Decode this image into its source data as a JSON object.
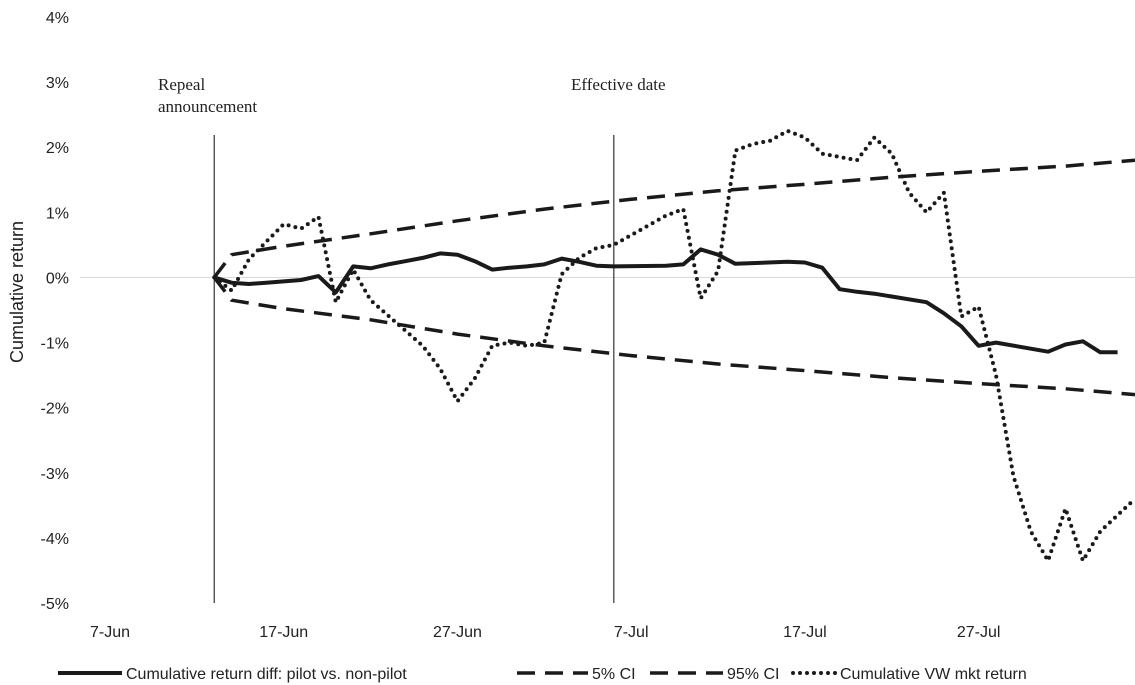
{
  "chart_data": {
    "type": "line",
    "title": "",
    "xlabel": "",
    "ylabel": "Cumulative return",
    "x_ticks": [
      "7-Jun",
      "17-Jun",
      "27-Jun",
      "7-Jul",
      "17-Jul",
      "27-Jul"
    ],
    "y_ticks": [
      "4%",
      "3%",
      "2%",
      "1%",
      "0%",
      "-1%",
      "-2%",
      "-3%",
      "-4%",
      "-5%"
    ],
    "x_range": [
      "2016-06-07",
      "2016-08-05"
    ],
    "ylim": [
      -5,
      4
    ],
    "y_unit": "%",
    "gridlines": "zero line only",
    "legend_position": "bottom",
    "annotations": [
      {
        "label": "Repeal announcement",
        "lines": [
          "Repeal",
          "announcement"
        ],
        "date": "2016-06-13"
      },
      {
        "label": "Effective date",
        "lines": [
          "Effective date"
        ],
        "date": "2016-07-06"
      }
    ],
    "series": [
      {
        "name": "Cumulative return diff: pilot vs. non-pilot",
        "style": "solid",
        "color": "#1a1a1a",
        "points": [
          [
            "2016-06-13",
            0.0
          ],
          [
            "2016-06-14",
            -0.08
          ],
          [
            "2016-06-15",
            -0.1
          ],
          [
            "2016-06-16",
            -0.08
          ],
          [
            "2016-06-17",
            -0.06
          ],
          [
            "2016-06-18",
            -0.04
          ],
          [
            "2016-06-19",
            0.02
          ],
          [
            "2016-06-20",
            -0.23
          ],
          [
            "2016-06-21",
            0.17
          ],
          [
            "2016-06-22",
            0.14
          ],
          [
            "2016-06-23",
            0.2
          ],
          [
            "2016-06-24",
            0.25
          ],
          [
            "2016-06-25",
            0.3
          ],
          [
            "2016-06-26",
            0.37
          ],
          [
            "2016-06-27",
            0.35
          ],
          [
            "2016-06-28",
            0.25
          ],
          [
            "2016-06-29",
            0.12
          ],
          [
            "2016-06-30",
            0.15
          ],
          [
            "2016-07-01",
            0.17
          ],
          [
            "2016-07-02",
            0.2
          ],
          [
            "2016-07-03",
            0.29
          ],
          [
            "2016-07-04",
            0.24
          ],
          [
            "2016-07-05",
            0.18
          ],
          [
            "2016-07-06",
            0.17
          ],
          [
            "2016-07-09",
            0.18
          ],
          [
            "2016-07-10",
            0.2
          ],
          [
            "2016-07-11",
            0.43
          ],
          [
            "2016-07-12",
            0.35
          ],
          [
            "2016-07-13",
            0.21
          ],
          [
            "2016-07-16",
            0.24
          ],
          [
            "2016-07-17",
            0.23
          ],
          [
            "2016-07-18",
            0.15
          ],
          [
            "2016-07-19",
            -0.18
          ],
          [
            "2016-07-20",
            -0.22
          ],
          [
            "2016-07-21",
            -0.25
          ],
          [
            "2016-07-24",
            -0.38
          ],
          [
            "2016-07-25",
            -0.55
          ],
          [
            "2016-07-26",
            -0.75
          ],
          [
            "2016-07-27",
            -1.05
          ],
          [
            "2016-07-28",
            -1.0
          ],
          [
            "2016-07-31",
            -1.14
          ],
          [
            "2016-08-01",
            -1.03
          ],
          [
            "2016-08-02",
            -0.98
          ],
          [
            "2016-08-03",
            -1.15
          ],
          [
            "2016-08-04",
            -1.15
          ]
        ]
      },
      {
        "name": "5% CI",
        "style": "dashed",
        "color": "#1a1a1a",
        "points": [
          [
            "2016-06-13",
            0.0
          ],
          [
            "2016-06-14",
            -0.35
          ],
          [
            "2016-06-17",
            -0.48
          ],
          [
            "2016-06-22",
            -0.65
          ],
          [
            "2016-06-27",
            -0.87
          ],
          [
            "2016-07-02",
            -1.05
          ],
          [
            "2016-07-07",
            -1.2
          ],
          [
            "2016-07-12",
            -1.33
          ],
          [
            "2016-07-17",
            -1.43
          ],
          [
            "2016-07-22",
            -1.54
          ],
          [
            "2016-07-27",
            -1.63
          ],
          [
            "2016-08-01",
            -1.71
          ],
          [
            "2016-08-05",
            -1.8
          ]
        ]
      },
      {
        "name": "95% CI",
        "style": "dashed",
        "color": "#1a1a1a",
        "points": [
          [
            "2016-06-13",
            0.0
          ],
          [
            "2016-06-14",
            0.35
          ],
          [
            "2016-06-17",
            0.48
          ],
          [
            "2016-06-22",
            0.67
          ],
          [
            "2016-06-27",
            0.87
          ],
          [
            "2016-07-02",
            1.05
          ],
          [
            "2016-07-07",
            1.2
          ],
          [
            "2016-07-12",
            1.33
          ],
          [
            "2016-07-17",
            1.43
          ],
          [
            "2016-07-22",
            1.54
          ],
          [
            "2016-07-27",
            1.63
          ],
          [
            "2016-08-01",
            1.71
          ],
          [
            "2016-08-05",
            1.8
          ]
        ]
      },
      {
        "name": "Cumulative VW mkt return",
        "style": "dotted",
        "color": "#1a1a1a",
        "points": [
          [
            "2016-06-13",
            0.0
          ],
          [
            "2016-06-14",
            -0.2
          ],
          [
            "2016-06-15",
            0.28
          ],
          [
            "2016-06-16",
            0.55
          ],
          [
            "2016-06-17",
            0.82
          ],
          [
            "2016-06-18",
            0.75
          ],
          [
            "2016-06-19",
            0.93
          ],
          [
            "2016-06-20",
            -0.38
          ],
          [
            "2016-06-21",
            0.12
          ],
          [
            "2016-06-22",
            -0.35
          ],
          [
            "2016-06-25",
            -1.05
          ],
          [
            "2016-06-26",
            -1.4
          ],
          [
            "2016-06-27",
            -1.9
          ],
          [
            "2016-06-28",
            -1.55
          ],
          [
            "2016-06-29",
            -1.05
          ],
          [
            "2016-06-30",
            -1.0
          ],
          [
            "2016-07-01",
            -1.05
          ],
          [
            "2016-07-02",
            -1.0
          ],
          [
            "2016-07-03",
            0.05
          ],
          [
            "2016-07-04",
            0.3
          ],
          [
            "2016-07-05",
            0.45
          ],
          [
            "2016-07-06",
            0.5
          ],
          [
            "2016-07-09",
            0.95
          ],
          [
            "2016-07-10",
            1.05
          ],
          [
            "2016-07-11",
            -0.32
          ],
          [
            "2016-07-12",
            0.1
          ],
          [
            "2016-07-13",
            1.95
          ],
          [
            "2016-07-14",
            2.05
          ],
          [
            "2016-07-15",
            2.1
          ],
          [
            "2016-07-16",
            2.25
          ],
          [
            "2016-07-17",
            2.15
          ],
          [
            "2016-07-18",
            1.9
          ],
          [
            "2016-07-19",
            1.85
          ],
          [
            "2016-07-20",
            1.8
          ],
          [
            "2016-07-21",
            2.15
          ],
          [
            "2016-07-22",
            1.9
          ],
          [
            "2016-07-23",
            1.3
          ],
          [
            "2016-07-24",
            1.0
          ],
          [
            "2016-07-25",
            1.3
          ],
          [
            "2016-07-26",
            -0.6
          ],
          [
            "2016-07-27",
            -0.45
          ],
          [
            "2016-07-28",
            -1.5
          ],
          [
            "2016-07-29",
            -3.05
          ],
          [
            "2016-07-30",
            -3.9
          ],
          [
            "2016-07-31",
            -4.35
          ],
          [
            "2016-08-01",
            -3.55
          ],
          [
            "2016-08-02",
            -4.35
          ],
          [
            "2016-08-03",
            -3.9
          ],
          [
            "2016-08-05",
            -3.4
          ]
        ]
      }
    ]
  }
}
